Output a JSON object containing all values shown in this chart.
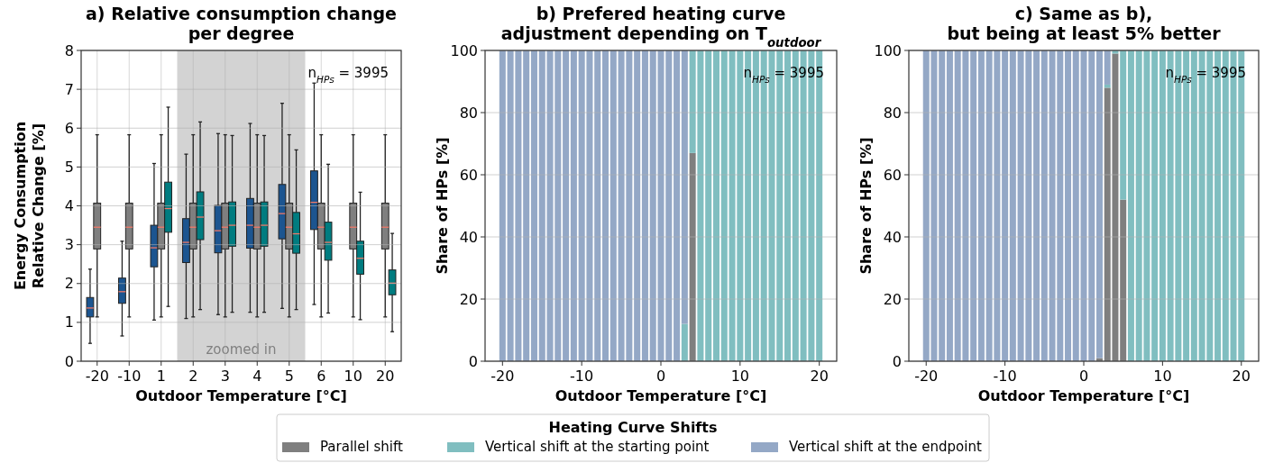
{
  "chart_data": [
    {
      "type": "box",
      "title": "a) Relative consumption change\nper degree",
      "xlabel": "Outdoor Temperature [°C]",
      "ylabel": "Energy Consumption\nRelative Change [%]",
      "categories": [
        "-20",
        "-10",
        "1",
        "2",
        "3",
        "4",
        "5",
        "6",
        "10",
        "20"
      ],
      "ylim": [
        0,
        8
      ],
      "yticks": [
        0,
        1,
        2,
        3,
        4,
        5,
        6,
        7,
        8
      ],
      "grid": true,
      "annotations": [
        "n$_{HPs}$ = 3995"
      ],
      "bands": [
        {
          "axis": "x",
          "from": "2",
          "to": "5",
          "label": "zoomed in",
          "color": "#d3d3d3"
        }
      ],
      "series": [
        {
          "color": "#1c5590",
          "boxes": [
            {
              "low": 0.46,
              "q1": 1.14,
              "median": 1.37,
              "q3": 1.64,
              "high": 2.37
            },
            {
              "low": 0.65,
              "q1": 1.49,
              "median": 1.79,
              "q3": 2.14,
              "high": 3.09
            },
            {
              "low": 1.06,
              "q1": 2.43,
              "median": 2.92,
              "q3": 3.5,
              "high": 5.09
            },
            {
              "low": 1.1,
              "q1": 2.54,
              "median": 3.06,
              "q3": 3.67,
              "high": 5.33
            },
            {
              "low": 1.2,
              "q1": 2.79,
              "median": 3.36,
              "q3": 4.01,
              "high": 5.86
            },
            {
              "low": 1.26,
              "q1": 2.91,
              "median": 3.5,
              "q3": 4.19,
              "high": 6.12
            },
            {
              "low": 1.36,
              "q1": 3.15,
              "median": 3.8,
              "q3": 4.55,
              "high": 6.64
            },
            {
              "low": 1.46,
              "q1": 3.39,
              "median": 4.09,
              "q3": 4.9,
              "high": 7.16
            },
            null,
            null
          ]
        },
        {
          "color": "#7f7f7f",
          "boxes": [
            {
              "low": 1.14,
              "q1": 2.89,
              "median": 3.45,
              "q3": 4.07,
              "high": 5.83
            },
            {
              "low": 1.14,
              "q1": 2.89,
              "median": 3.45,
              "q3": 4.07,
              "high": 5.83
            },
            {
              "low": 1.14,
              "q1": 2.89,
              "median": 3.45,
              "q3": 4.07,
              "high": 5.83
            },
            {
              "low": 1.14,
              "q1": 2.89,
              "median": 3.45,
              "q3": 4.07,
              "high": 5.83
            },
            {
              "low": 1.14,
              "q1": 2.89,
              "median": 3.45,
              "q3": 4.07,
              "high": 5.83
            },
            {
              "low": 1.14,
              "q1": 2.89,
              "median": 3.45,
              "q3": 4.07,
              "high": 5.83
            },
            {
              "low": 1.14,
              "q1": 2.89,
              "median": 3.45,
              "q3": 4.07,
              "high": 5.83
            },
            {
              "low": 1.14,
              "q1": 2.89,
              "median": 3.45,
              "q3": 4.07,
              "high": 5.83
            },
            {
              "low": 1.14,
              "q1": 2.89,
              "median": 3.45,
              "q3": 4.07,
              "high": 5.83
            },
            {
              "low": 1.14,
              "q1": 2.89,
              "median": 3.45,
              "q3": 4.07,
              "high": 5.83
            }
          ]
        },
        {
          "color": "#007c80",
          "boxes": [
            null,
            null,
            {
              "low": 1.41,
              "q1": 3.32,
              "median": 3.93,
              "q3": 4.61,
              "high": 6.54
            },
            {
              "low": 1.33,
              "q1": 3.13,
              "median": 3.71,
              "q3": 4.36,
              "high": 6.16
            },
            {
              "low": 1.26,
              "q1": 2.96,
              "median": 3.5,
              "q3": 4.1,
              "high": 5.81
            },
            {
              "low": 1.26,
              "q1": 2.96,
              "median": 3.5,
              "q3": 4.1,
              "high": 5.81
            },
            {
              "low": 1.33,
              "q1": 2.78,
              "median": 3.28,
              "q3": 3.83,
              "high": 5.44
            },
            {
              "low": 1.24,
              "q1": 2.6,
              "median": 3.06,
              "q3": 3.58,
              "high": 5.07
            },
            {
              "low": 1.07,
              "q1": 2.24,
              "median": 2.65,
              "q3": 3.09,
              "high": 4.35
            },
            {
              "low": 0.76,
              "q1": 1.71,
              "median": 2.01,
              "q3": 2.35,
              "high": 3.29
            }
          ]
        }
      ]
    },
    {
      "type": "bar",
      "stacked": true,
      "title": "b) Prefered heating curve\nadjustment depending on T$_{outdoor}$",
      "xlabel": "Outdoor Temperature [°C]",
      "ylabel": "Share of HPs [%]",
      "xlim": [
        -22.2,
        22.2
      ],
      "xticks": [
        -20,
        -10,
        0,
        10,
        20
      ],
      "ylim": [
        0,
        100
      ],
      "yticks": [
        0,
        20,
        40,
        60,
        80,
        100
      ],
      "grid": "y",
      "legend": "bottom",
      "legend_title": "Heating Curve Shifts",
      "annotations": [
        "n$_{HPs}$ = 3995"
      ],
      "x": [
        -20,
        -19,
        -18,
        -17,
        -16,
        -15,
        -14,
        -13,
        -12,
        -11,
        -10,
        -9,
        -8,
        -7,
        -6,
        -5,
        -4,
        -3,
        -2,
        -1,
        0,
        1,
        2,
        3,
        4,
        5,
        6,
        7,
        8,
        9,
        10,
        11,
        12,
        13,
        14,
        15,
        16,
        17,
        18,
        19,
        20
      ],
      "series": [
        {
          "name": "Parallel shift",
          "color": "#7f7f7f",
          "values": [
            0,
            0,
            0,
            0,
            0,
            0,
            0,
            0,
            0,
            0,
            0,
            0,
            0,
            0,
            0,
            0,
            0,
            0,
            0,
            0,
            0,
            0,
            0,
            0,
            67,
            0,
            0,
            0,
            0,
            0,
            0,
            0,
            0,
            0,
            0,
            0,
            0,
            0,
            0,
            0,
            0
          ]
        },
        {
          "name": "Vertical shift at the starting point",
          "color": "#80bec0",
          "values": [
            0,
            0,
            0,
            0,
            0,
            0,
            0,
            0,
            0,
            0,
            0,
            0,
            0,
            0,
            0,
            0,
            0,
            0,
            0,
            0,
            0,
            0,
            0,
            12,
            33,
            100,
            100,
            100,
            100,
            100,
            100,
            100,
            100,
            100,
            100,
            100,
            100,
            100,
            100,
            100,
            100
          ]
        },
        {
          "name": "Vertical shift at the endpoint",
          "color": "#94a8c6",
          "values": [
            100,
            100,
            100,
            100,
            100,
            100,
            100,
            100,
            100,
            100,
            100,
            100,
            100,
            100,
            100,
            100,
            100,
            100,
            100,
            100,
            100,
            100,
            100,
            88,
            0,
            0,
            0,
            0,
            0,
            0,
            0,
            0,
            0,
            0,
            0,
            0,
            0,
            0,
            0,
            0,
            0
          ]
        }
      ]
    },
    {
      "type": "bar",
      "stacked": true,
      "title": "c) Same as b),\nbut being at least 5% better",
      "xlabel": "Outdoor Temperature [°C]",
      "ylabel": "Share of HPs [%]",
      "xlim": [
        -22.2,
        22.2
      ],
      "xticks": [
        -20,
        -10,
        0,
        10,
        20
      ],
      "ylim": [
        0,
        100
      ],
      "yticks": [
        0,
        20,
        40,
        60,
        80,
        100
      ],
      "grid": "y",
      "annotations": [
        "n$_{HPs}$ = 3995"
      ],
      "x": [
        -20,
        -19,
        -18,
        -17,
        -16,
        -15,
        -14,
        -13,
        -12,
        -11,
        -10,
        -9,
        -8,
        -7,
        -6,
        -5,
        -4,
        -3,
        -2,
        -1,
        0,
        1,
        2,
        3,
        4,
        5,
        6,
        7,
        8,
        9,
        10,
        11,
        12,
        13,
        14,
        15,
        16,
        17,
        18,
        19,
        20
      ],
      "series": [
        {
          "color": "#7f7f7f",
          "values": [
            0,
            0,
            0,
            0,
            0,
            0,
            0,
            0,
            0,
            0,
            0,
            0,
            0,
            0,
            0,
            0,
            0,
            0,
            0,
            0,
            0,
            0,
            1,
            88,
            99,
            52,
            0,
            0,
            0,
            0,
            0,
            0,
            0,
            0,
            0,
            0,
            0,
            0,
            0,
            0,
            0
          ]
        },
        {
          "color": "#80bec0",
          "values": [
            0,
            0,
            0,
            0,
            0,
            0,
            0,
            0,
            0,
            0,
            0,
            0,
            0,
            0,
            0,
            0,
            0,
            0,
            0,
            0,
            0,
            0,
            0,
            1,
            1,
            48,
            100,
            100,
            100,
            100,
            100,
            100,
            100,
            100,
            100,
            100,
            100,
            100,
            100,
            100,
            100
          ]
        },
        {
          "color": "#94a8c6",
          "values": [
            100,
            100,
            100,
            100,
            100,
            100,
            100,
            100,
            100,
            100,
            100,
            100,
            100,
            100,
            100,
            100,
            100,
            100,
            100,
            100,
            100,
            100,
            99,
            11,
            0,
            0,
            0,
            0,
            0,
            0,
            0,
            0,
            0,
            0,
            0,
            0,
            0,
            0,
            0,
            0,
            0
          ]
        }
      ]
    }
  ]
}
